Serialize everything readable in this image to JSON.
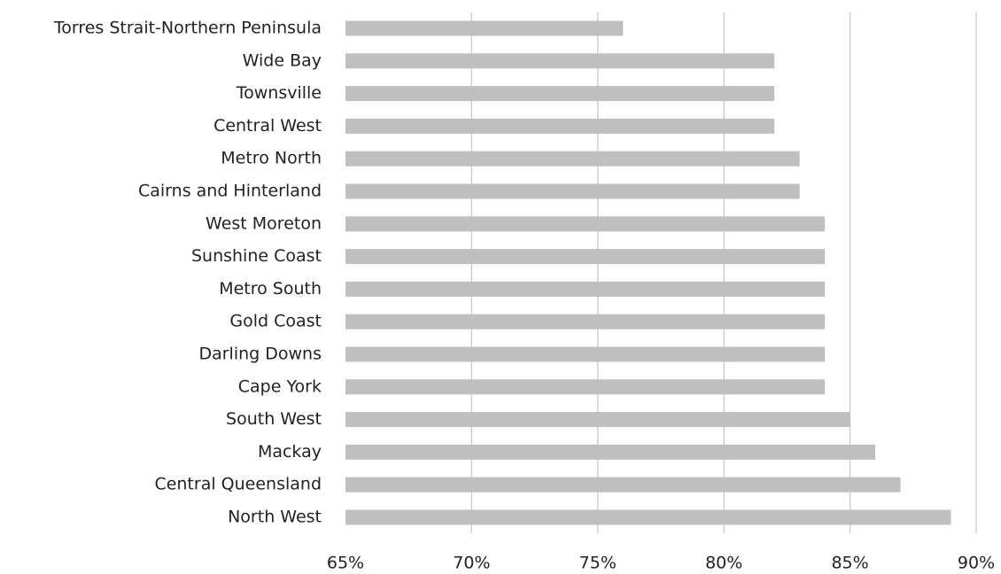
{
  "chart_data": {
    "type": "bar",
    "orientation": "horizontal",
    "categories": [
      "Torres Strait-Northern Peninsula",
      "Wide Bay",
      "Townsville",
      "Central West",
      "Metro North",
      "Cairns and Hinterland",
      "West Moreton",
      "Sunshine Coast",
      "Metro South",
      "Gold Coast",
      "Darling Downs",
      "Cape York",
      "South West",
      "Mackay",
      "Central Queensland",
      "North West"
    ],
    "values": [
      76,
      82,
      82,
      82,
      83,
      83,
      84,
      84,
      84,
      84,
      84,
      84,
      85,
      86,
      87,
      89
    ],
    "color": "#bfbfbf",
    "xlim": [
      65,
      90
    ],
    "xticks": [
      {
        "value": 65,
        "label": "65%"
      },
      {
        "value": 70,
        "label": "70%"
      },
      {
        "value": 75,
        "label": "75%"
      },
      {
        "value": 80,
        "label": "80%"
      },
      {
        "value": 85,
        "label": "85%"
      },
      {
        "value": 90,
        "label": "90%"
      }
    ],
    "grid": true
  }
}
